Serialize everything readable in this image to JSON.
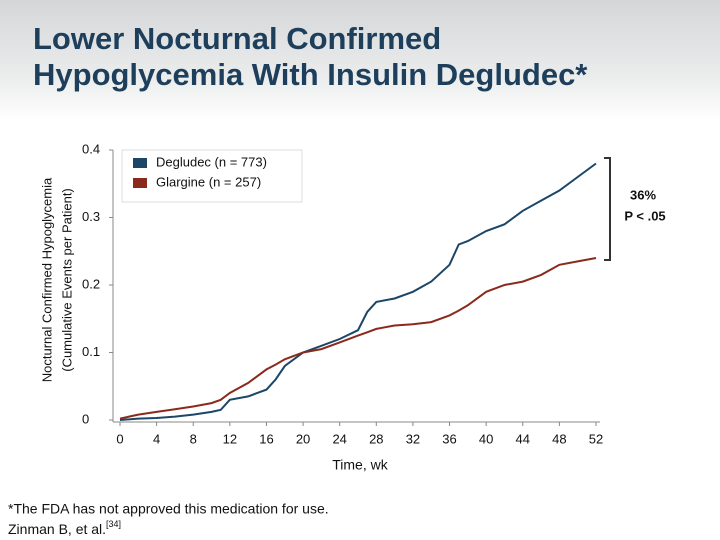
{
  "chart_data": {
    "type": "line",
    "title": [
      "Lower Nocturnal Confirmed",
      "Hypoglycemia With Insulin Degludec*"
    ],
    "y_label": [
      "Nocturnal Confirmed Hypoglycemia",
      "(Cumulative Events per Patient)"
    ],
    "x_label": "Time, wk",
    "x": [
      0,
      2,
      4,
      6,
      8,
      10,
      11,
      12,
      14,
      16,
      17,
      18,
      20,
      22,
      24,
      26,
      27,
      28,
      30,
      32,
      34,
      36,
      37,
      38,
      40,
      42,
      44,
      46,
      48,
      50,
      52
    ],
    "series": [
      {
        "name": "Degludec (n = 773)",
        "color": "#1b4668",
        "values": [
          0,
          0.002,
          0.003,
          0.005,
          0.008,
          0.012,
          0.015,
          0.03,
          0.035,
          0.045,
          0.06,
          0.08,
          0.1,
          0.11,
          0.12,
          0.133,
          0.16,
          0.175,
          0.18,
          0.19,
          0.205,
          0.23,
          0.26,
          0.265,
          0.28,
          0.29,
          0.31,
          0.325,
          0.34,
          0.36,
          0.38
        ]
      },
      {
        "name": "Glargine (n = 257)",
        "color": "#8b2a1c",
        "values": [
          0.002,
          0.008,
          0.012,
          0.016,
          0.02,
          0.025,
          0.03,
          0.04,
          0.055,
          0.075,
          0.082,
          0.09,
          0.1,
          0.105,
          0.115,
          0.125,
          0.13,
          0.135,
          0.14,
          0.142,
          0.145,
          0.155,
          0.162,
          0.17,
          0.19,
          0.2,
          0.205,
          0.215,
          0.23,
          0.235,
          0.24
        ]
      }
    ],
    "xlim": [
      0,
      52
    ],
    "xticks": [
      0,
      4,
      8,
      12,
      16,
      20,
      24,
      28,
      32,
      36,
      40,
      44,
      48,
      52
    ],
    "ylim": [
      0,
      0.4
    ],
    "yticks": [
      0,
      0.1,
      0.2,
      0.3,
      0.4
    ],
    "annotations": [
      "36%",
      "P < .05"
    ]
  },
  "footnote": "*The FDA has not approved this medication for use.",
  "citation": {
    "text": "Zinman B, et al.",
    "ref": "[34]"
  }
}
